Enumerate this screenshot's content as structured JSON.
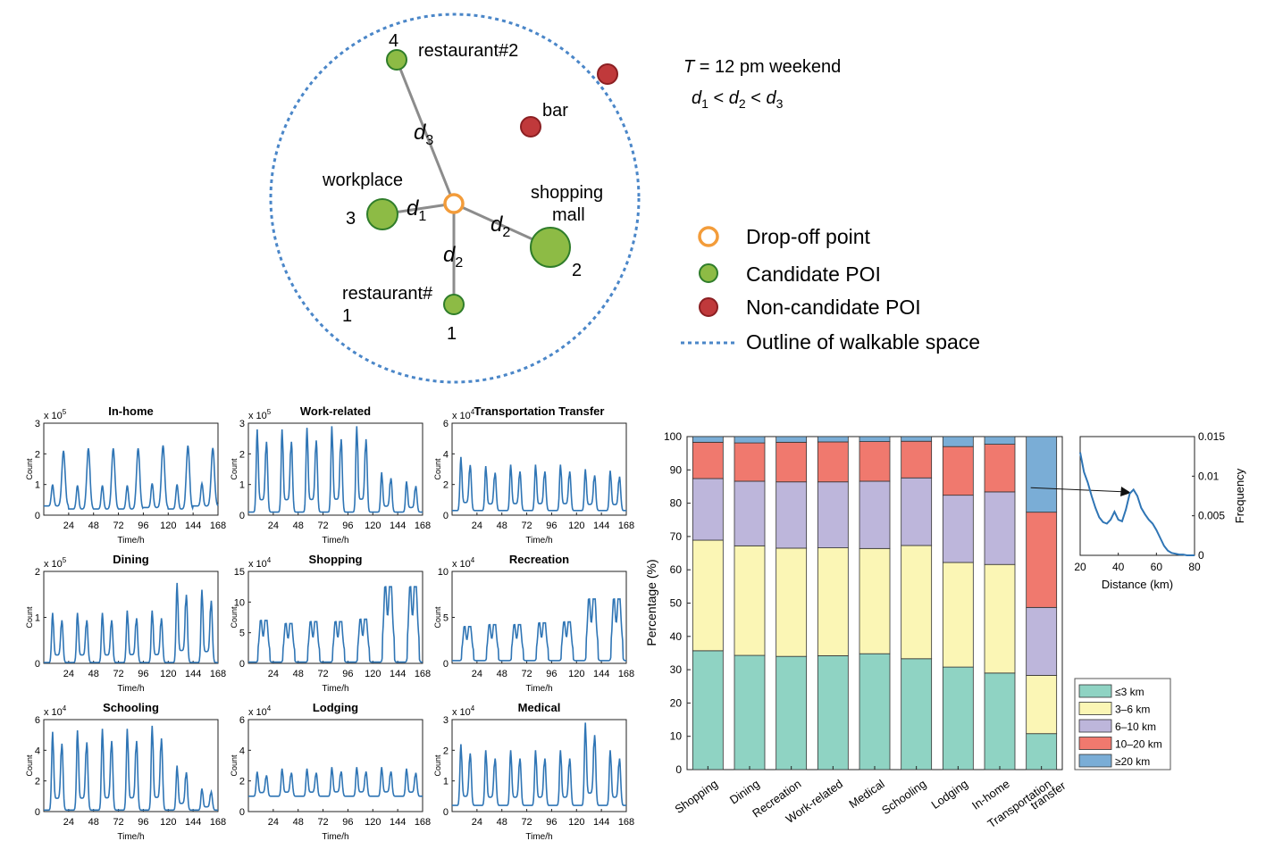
{
  "diagram": {
    "condition": {
      "t_symbol": "T",
      "t_rest": " = 12 pm weekend"
    },
    "ordering": {
      "d1": "d",
      "s1": "1",
      "lt1": " < ",
      "d2": "d",
      "s2": "2",
      "lt2": " < ",
      "d3": "d",
      "s3": "3"
    },
    "pois": [
      {
        "id": "restaurant2",
        "label": "restaurant#2",
        "rank": "4",
        "kind": "candidate",
        "size": "small"
      },
      {
        "id": "bar",
        "label": "bar",
        "rank": "",
        "kind": "non-candidate",
        "size": "small"
      },
      {
        "id": "offsite",
        "label": "",
        "rank": "",
        "kind": "non-candidate",
        "size": "small"
      },
      {
        "id": "workplace",
        "label": "workplace",
        "rank": "3",
        "kind": "candidate",
        "size": "medium"
      },
      {
        "id": "mall",
        "label_line1": "shopping",
        "label_line2": "mall",
        "rank": "2",
        "kind": "candidate",
        "size": "large"
      },
      {
        "id": "restaurant1",
        "label_line1": "restaurant#",
        "label_line2": "1",
        "rank": "1",
        "kind": "candidate",
        "size": "small"
      }
    ],
    "distances": {
      "d": "d",
      "s1": "1",
      "s2": "2",
      "s3": "3"
    },
    "legend": {
      "dropoff": "Drop-off point",
      "candidate": "Candidate POI",
      "noncandidate": "Non-candidate POI",
      "outline": "Outline of walkable space"
    },
    "colors": {
      "dropoff": "#f39c3a",
      "candidate": "#8dbb45",
      "candidate_stroke": "#2f7d2a",
      "noncandidate": "#c0393b",
      "noncandidate_stroke": "#8b1f22",
      "outline": "#4a86c8",
      "line": "#8c8c8c"
    }
  },
  "chart_data": [
    {
      "type": "line",
      "panels": [
        {
          "title": "In-home",
          "exponent": "5",
          "ylim": [
            0,
            3
          ],
          "yticks": [
            "0",
            "1",
            "2",
            "3"
          ],
          "peaks": [
            2.3,
            2.4,
            2.4,
            2.4,
            2.5,
            2.5,
            2.4
          ],
          "troughs": [
            0.3,
            0.2,
            0.2,
            0.2,
            0.25,
            0.2,
            0.3
          ],
          "shape": "single"
        },
        {
          "title": "Work-related",
          "exponent": "5",
          "ylim": [
            0,
            3
          ],
          "yticks": [
            "0",
            "1",
            "2",
            "3"
          ],
          "peaks": [
            2.8,
            2.8,
            2.85,
            2.9,
            2.9,
            1.4,
            1.1
          ],
          "troughs": [
            0.1,
            0.1,
            0.1,
            0.1,
            0.1,
            0.1,
            0.1
          ],
          "shape": "double"
        },
        {
          "title": "Transportation Transfer",
          "exponent": "4",
          "ylim": [
            0,
            6
          ],
          "yticks": [
            "0",
            "2",
            "4",
            "6"
          ],
          "peaks": [
            3.8,
            3.2,
            3.3,
            3.3,
            3.3,
            3.0,
            2.9
          ],
          "troughs": [
            0.3,
            0.3,
            0.3,
            0.3,
            0.3,
            0.3,
            0.3
          ],
          "shape": "double"
        },
        {
          "title": "Dining",
          "exponent": "5",
          "ylim": [
            0,
            2
          ],
          "yticks": [
            "0",
            "1",
            "2"
          ],
          "peaks": [
            1.1,
            1.1,
            1.1,
            1.15,
            1.15,
            1.75,
            1.6
          ],
          "troughs": [
            0.02,
            0.02,
            0.02,
            0.02,
            0.02,
            0.02,
            0.02
          ],
          "shape": "double"
        },
        {
          "title": "Shopping",
          "exponent": "4",
          "ylim": [
            0,
            15
          ],
          "yticks": [
            "0",
            "5",
            "10",
            "15"
          ],
          "peaks": [
            7.0,
            6.5,
            6.8,
            6.8,
            7.2,
            12.5,
            12.5
          ],
          "troughs": [
            0.2,
            0.2,
            0.2,
            0.2,
            0.2,
            0.2,
            0.2
          ],
          "shape": "plateau"
        },
        {
          "title": "Recreation",
          "exponent": "4",
          "ylim": [
            0,
            10
          ],
          "yticks": [
            "0",
            "5",
            "10"
          ],
          "peaks": [
            4.0,
            4.2,
            4.2,
            4.4,
            4.5,
            7.0,
            7.0
          ],
          "troughs": [
            0.3,
            0.3,
            0.3,
            0.3,
            0.3,
            0.3,
            0.3
          ],
          "shape": "plateau"
        },
        {
          "title": "Schooling",
          "exponent": "4",
          "ylim": [
            0,
            6
          ],
          "yticks": [
            "0",
            "2",
            "4",
            "6"
          ],
          "peaks": [
            5.2,
            5.3,
            5.4,
            5.4,
            5.6,
            3.0,
            1.5
          ],
          "troughs": [
            0.1,
            0.1,
            0.1,
            0.1,
            0.1,
            0.1,
            0.1
          ],
          "shape": "double"
        },
        {
          "title": "Lodging",
          "exponent": "4",
          "ylim": [
            0,
            6
          ],
          "yticks": [
            "0",
            "2",
            "4",
            "6"
          ],
          "peaks": [
            2.6,
            2.8,
            2.8,
            2.9,
            2.9,
            2.9,
            2.8
          ],
          "troughs": [
            1.0,
            1.0,
            1.0,
            1.0,
            1.0,
            1.0,
            1.0
          ],
          "shape": "double"
        },
        {
          "title": "Medical",
          "exponent": "4",
          "ylim": [
            0,
            3
          ],
          "yticks": [
            "0",
            "1",
            "2",
            "3"
          ],
          "peaks": [
            2.2,
            2.0,
            2.0,
            2.0,
            2.0,
            2.9,
            2.0
          ],
          "troughs": [
            0.2,
            0.2,
            0.2,
            0.2,
            0.2,
            0.2,
            0.2
          ],
          "shape": "double"
        }
      ],
      "xlim": [
        0,
        168
      ],
      "xticks": [
        "24",
        "48",
        "72",
        "96",
        "120",
        "144",
        "168"
      ],
      "xlabel": "Time/h",
      "ylabel": "Count",
      "exp_prefix": "x 10",
      "color": "#2f75b5"
    },
    {
      "type": "bar",
      "stacked": true,
      "categories": [
        "Shopping",
        "Dining",
        "Recreation",
        "Work-related",
        "Medical",
        "Schooling",
        "Lodging",
        "In-home",
        "Transportation transfer"
      ],
      "category_lines": [
        [
          "Shopping"
        ],
        [
          "Dining"
        ],
        [
          "Recreation"
        ],
        [
          "Work-related"
        ],
        [
          "Medical"
        ],
        [
          "Schooling"
        ],
        [
          "Lodging"
        ],
        [
          "In-home"
        ],
        [
          "Transportation",
          "transfer"
        ]
      ],
      "series": [
        {
          "name": "≤3 km",
          "color": "#8fd3c3",
          "values": [
            35.7,
            34.3,
            34.0,
            34.2,
            34.8,
            33.3,
            30.8,
            29.0,
            10.8
          ]
        },
        {
          "name": "3–6 km",
          "color": "#fbf6b5",
          "values": [
            33.2,
            32.9,
            32.5,
            32.4,
            31.6,
            34.0,
            31.4,
            32.6,
            17.5
          ]
        },
        {
          "name": "6–10 km",
          "color": "#bdb6db",
          "values": [
            18.5,
            19.4,
            19.9,
            19.8,
            20.2,
            20.3,
            20.2,
            21.8,
            20.4
          ]
        },
        {
          "name": "10–20 km",
          "color": "#f0796e",
          "values": [
            10.9,
            11.5,
            11.9,
            12.0,
            11.9,
            11.0,
            14.6,
            14.3,
            28.6
          ]
        },
        {
          "name": "≥20 km",
          "color": "#7aadd6",
          "values": [
            1.7,
            1.9,
            1.7,
            1.6,
            1.5,
            1.4,
            3.0,
            2.3,
            22.7
          ]
        }
      ],
      "ylabel": "Percentage (%)",
      "ylim": [
        0,
        100
      ],
      "yticks": [
        "0",
        "10",
        "20",
        "30",
        "40",
        "50",
        "60",
        "70",
        "80",
        "90",
        "100"
      ],
      "legend_position": "bottom-right"
    },
    {
      "type": "line",
      "inset": true,
      "x": [
        20,
        22,
        24,
        26,
        28,
        30,
        32,
        34,
        36,
        38,
        40,
        42,
        44,
        46,
        48,
        50,
        52,
        54,
        56,
        58,
        60,
        62,
        64,
        66,
        68,
        70,
        72,
        74,
        76,
        78,
        80
      ],
      "y": [
        0.013,
        0.0105,
        0.0092,
        0.0075,
        0.006,
        0.0048,
        0.0042,
        0.004,
        0.0045,
        0.0055,
        0.0045,
        0.0043,
        0.0058,
        0.0078,
        0.0083,
        0.0075,
        0.006,
        0.0052,
        0.0045,
        0.004,
        0.0032,
        0.0022,
        0.0012,
        0.0006,
        0.0003,
        0.0002,
        0.0001,
        0.0001,
        0.0,
        0.0,
        0.0
      ],
      "xlabel": "Distance (km)",
      "ylabel": "Frequency",
      "xlim": [
        20,
        80
      ],
      "ylim": [
        0,
        0.015
      ],
      "xticks": [
        "20",
        "40",
        "60",
        "80"
      ],
      "yticks": [
        "0",
        "0.005",
        "0.01",
        "0.015"
      ],
      "color": "#2f75b5"
    }
  ]
}
